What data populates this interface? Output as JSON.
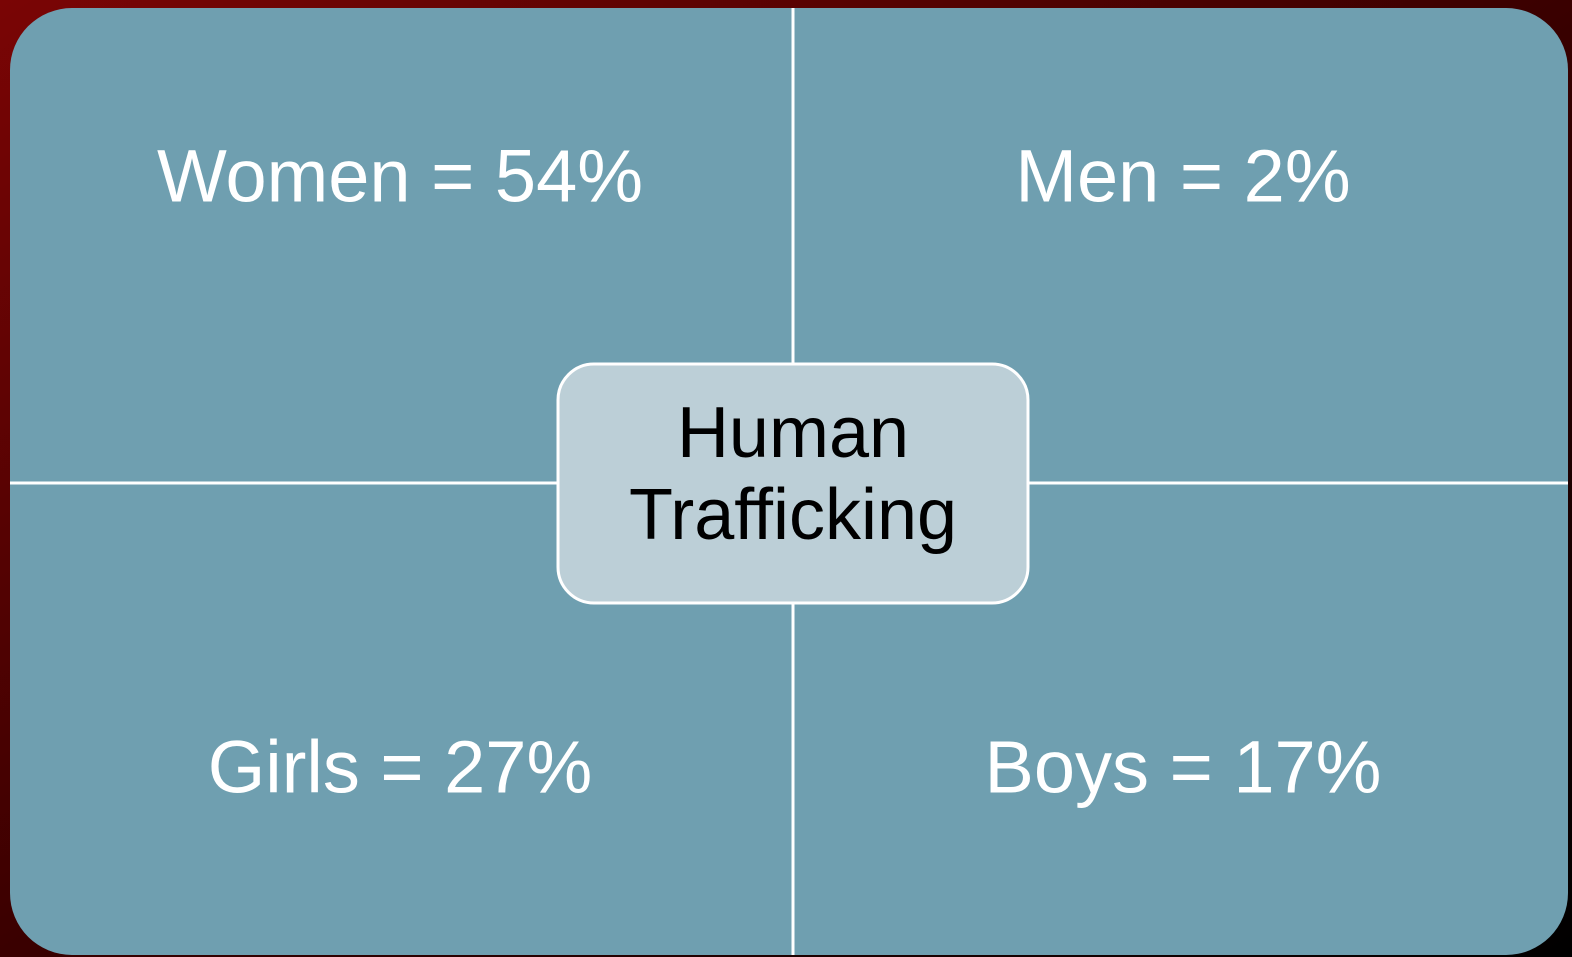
{
  "center": {
    "lines": [
      "Human",
      "Trafficking"
    ]
  },
  "quadrants": [
    {
      "label": "Women = 54%"
    },
    {
      "label": "Men = 2%"
    },
    {
      "label": "Girls = 27%"
    },
    {
      "label": "Boys = 17%"
    }
  ]
}
